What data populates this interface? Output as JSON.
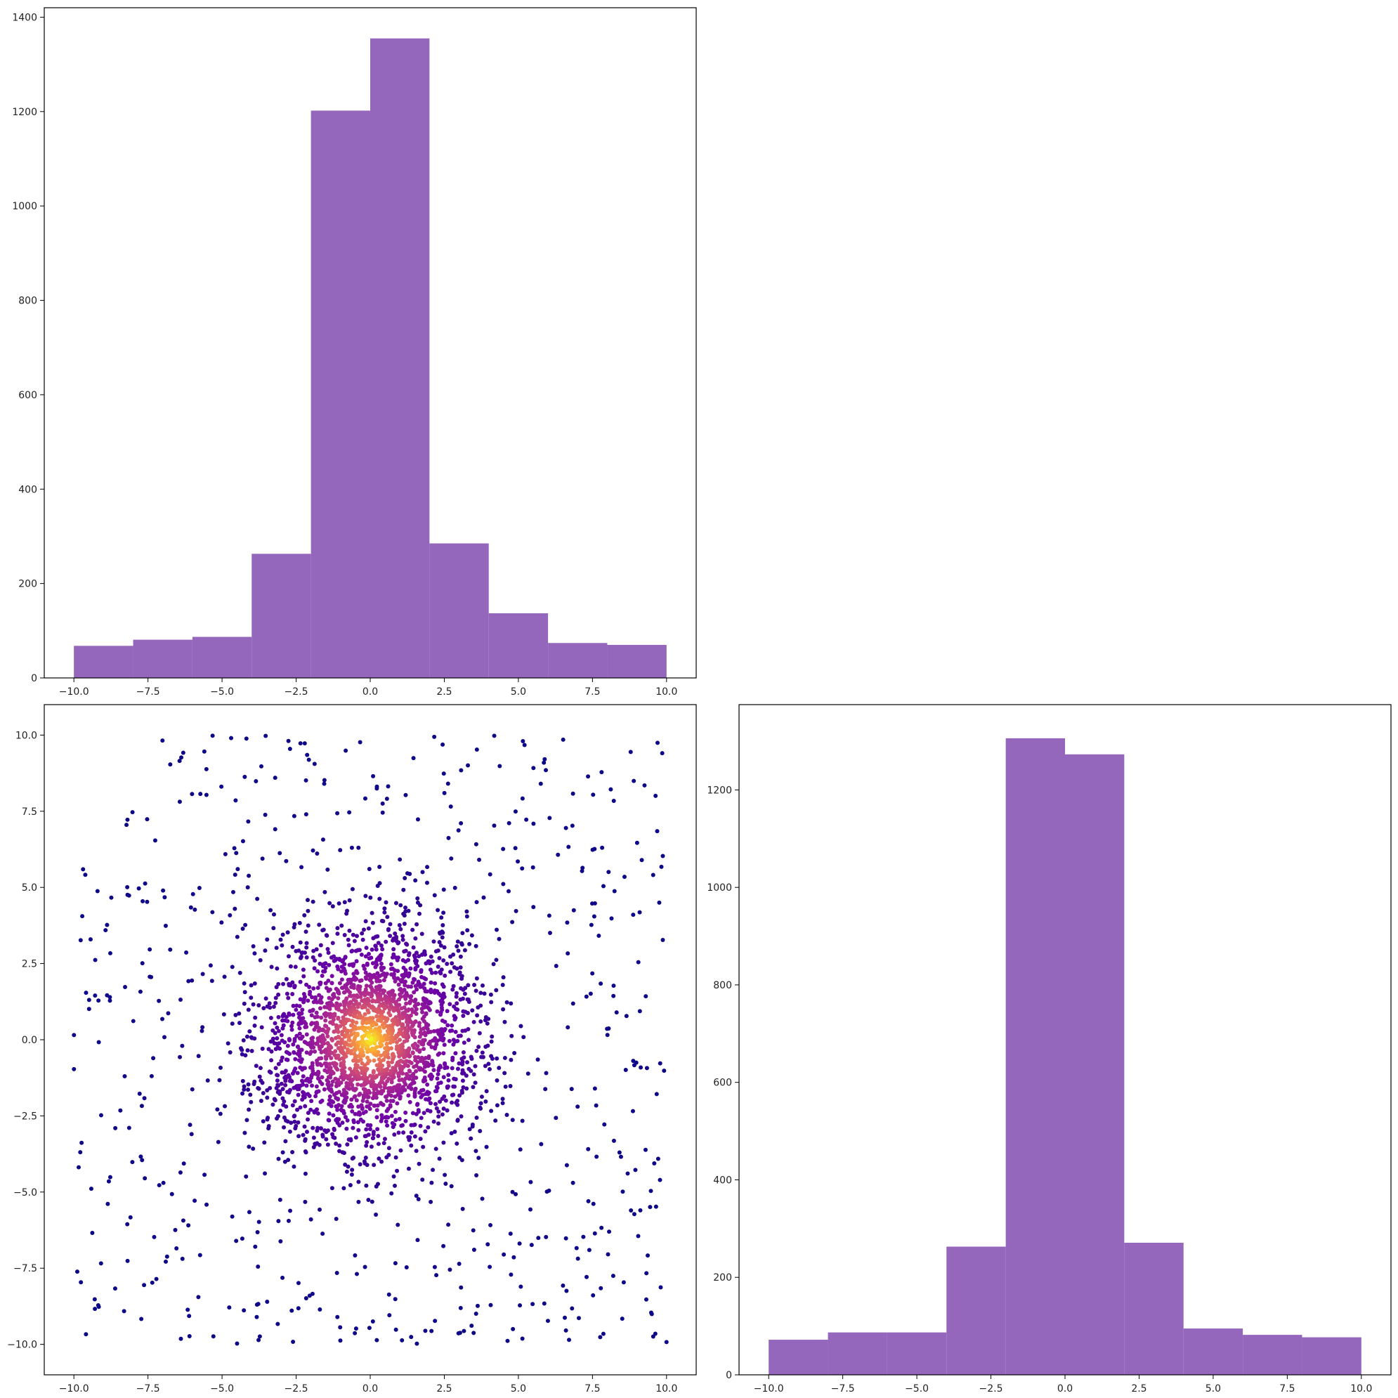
{
  "colors": {
    "hist_bar": "#9467bd",
    "scatter_colormap": [
      "#0d0887",
      "#6a00a8",
      "#b12a90",
      "#e16462",
      "#fca636",
      "#f0f921"
    ]
  },
  "chart_data": [
    {
      "type": "bar",
      "role": "histogram-x",
      "bin_edges": [
        -10,
        -8,
        -6,
        -4,
        -2,
        0,
        2,
        4,
        6,
        8,
        10
      ],
      "values": [
        68,
        81,
        87,
        263,
        1202,
        1355,
        285,
        137,
        74,
        70
      ],
      "xlim": [
        -11,
        11
      ],
      "ylim": [
        0,
        1420
      ],
      "xticks": [
        -10,
        -7.5,
        -5,
        -2.5,
        0,
        2.5,
        5,
        7.5,
        10
      ],
      "xtick_labels": [
        "−10.0",
        "−7.5",
        "−5.0",
        "−2.5",
        "0.0",
        "2.5",
        "5.0",
        "7.5",
        "10.0"
      ],
      "yticks": [
        0,
        200,
        400,
        600,
        800,
        1000,
        1200,
        1400
      ],
      "ytick_labels": [
        "0",
        "200",
        "400",
        "600",
        "800",
        "1000",
        "1200",
        "1400"
      ],
      "title": "",
      "xlabel": "",
      "ylabel": ""
    },
    {
      "type": "scatter",
      "role": "density-scatter",
      "color_scale": "plasma (density)",
      "center": [
        0,
        0
      ],
      "n_uniform": 700,
      "n_clustered": 2300,
      "xlim": [
        -11,
        11
      ],
      "ylim": [
        -11,
        11
      ],
      "xticks": [
        -10,
        -7.5,
        -5,
        -2.5,
        0,
        2.5,
        5,
        7.5,
        10
      ],
      "xtick_labels": [
        "−10.0",
        "−7.5",
        "−5.0",
        "−2.5",
        "0.0",
        "2.5",
        "5.0",
        "7.5",
        "10.0"
      ],
      "yticks": [
        -10,
        -7.5,
        -5,
        -2.5,
        0,
        2.5,
        5,
        7.5,
        10
      ],
      "ytick_labels": [
        "−10.0",
        "−7.5",
        "−5.0",
        "−2.5",
        "0.0",
        "2.5",
        "5.0",
        "7.5",
        "10.0"
      ],
      "title": "",
      "xlabel": "",
      "ylabel": ""
    },
    {
      "type": "bar",
      "role": "histogram-y",
      "bin_edges": [
        -10,
        -8,
        -6,
        -4,
        -2,
        0,
        2,
        4,
        6,
        8,
        10
      ],
      "values": [
        72,
        87,
        87,
        263,
        1306,
        1273,
        271,
        95,
        82,
        77
      ],
      "xlim": [
        -11,
        11
      ],
      "ylim": [
        0,
        1375
      ],
      "xticks": [
        -10,
        -7.5,
        -5,
        -2.5,
        0,
        2.5,
        5,
        7.5,
        10
      ],
      "xtick_labels": [
        "−10.0",
        "−7.5",
        "−5.0",
        "−2.5",
        "0.0",
        "2.5",
        "5.0",
        "7.5",
        "10.0"
      ],
      "yticks": [
        0,
        200,
        400,
        600,
        800,
        1000,
        1200
      ],
      "ytick_labels": [
        "0",
        "200",
        "400",
        "600",
        "800",
        "1000",
        "1200"
      ],
      "title": "",
      "xlabel": "",
      "ylabel": ""
    }
  ]
}
